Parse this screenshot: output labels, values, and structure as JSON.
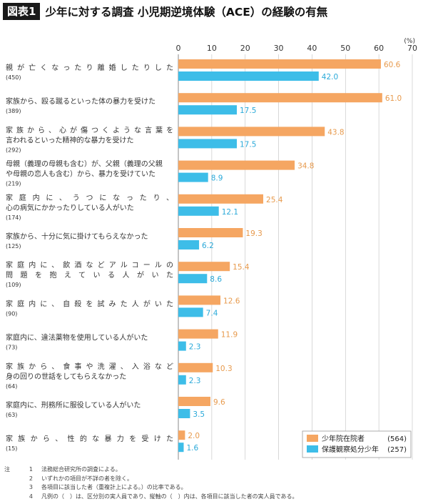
{
  "figure": {
    "badge": "図表1",
    "title": "少年に対する調査 小児期逆境体験（ACE）の経験の有無"
  },
  "notes": {
    "lead": "注",
    "items": [
      {
        "num": "1",
        "text": "法務総合研究所の調査による。"
      },
      {
        "num": "2",
        "text": "いずれかの項目が不詳の者を除く。"
      },
      {
        "num": "3",
        "text": "各項目に該当した者（重複計上による。）の比率である。"
      },
      {
        "num": "4",
        "text": "凡例の（　）は、区分別の実人員であり、縦軸の（　）内は、各項目に該当した者の実人員である。"
      }
    ]
  },
  "colors": {
    "orange": "#F5A662",
    "blue": "#3DBDE8",
    "orange_text": "#E79A4D",
    "blue_text": "#2AA9D9",
    "grid": "#c8c8c8"
  },
  "chart_data": {
    "type": "bar",
    "orientation": "horizontal",
    "unit": "(%)",
    "xlim": [
      0,
      70
    ],
    "ticks": [
      0,
      10,
      20,
      30,
      40,
      50,
      60,
      70
    ],
    "grid": true,
    "legend_position": "bottom-right",
    "series": [
      {
        "name": "少年院在院者",
        "count": "(564)",
        "values": [
          60.6,
          61.0,
          43.8,
          34.8,
          25.4,
          19.3,
          15.4,
          12.6,
          11.9,
          10.3,
          9.6,
          2.0
        ]
      },
      {
        "name": "保護観察処分少年",
        "count": "(257)",
        "values": [
          42.0,
          17.5,
          17.5,
          8.9,
          12.1,
          6.2,
          8.6,
          7.4,
          2.3,
          2.3,
          3.5,
          1.6
        ]
      }
    ],
    "categories": [
      {
        "lines": [
          "親が亡くなったり離婚したりした"
        ],
        "count": "(450)",
        "spread": [
          true
        ]
      },
      {
        "lines": [
          "家族から、殴る蹴るといった体の暴力を受けた"
        ],
        "count": "(389)",
        "spread": [
          false
        ]
      },
      {
        "lines": [
          "家族から、心が傷つくような言葉を",
          "言われるといった精神的な暴力を受けた"
        ],
        "count": "(292)",
        "spread": [
          true,
          false
        ]
      },
      {
        "lines": [
          "母親（義理の母親も含む）が、父親（義理の父親",
          "や母親の恋人も含む）から、暴力を受けていた"
        ],
        "count": "(219)",
        "spread": [
          false,
          false
        ]
      },
      {
        "lines": [
          "家庭内に、うつになったり、",
          "心の病気にかかったりしている人がいた"
        ],
        "count": "(174)",
        "spread": [
          true,
          false
        ]
      },
      {
        "lines": [
          "家族から、十分に気に掛けてもらえなかった"
        ],
        "count": "(125)",
        "spread": [
          false
        ]
      },
      {
        "lines": [
          "家庭内に、飲酒などアルコールの",
          "問題を抱えている人がいた"
        ],
        "count": "(109)",
        "spread": [
          true,
          true
        ]
      },
      {
        "lines": [
          "家庭内に、自殺を試みた人がいた"
        ],
        "count": "(90)",
        "spread": [
          true
        ]
      },
      {
        "lines": [
          "家庭内に、違法薬物を使用している人がいた"
        ],
        "count": "(73)",
        "spread": [
          false
        ]
      },
      {
        "lines": [
          "家族から、食事や洗濯、入浴など",
          "身の回りの世話をしてもらえなかった"
        ],
        "count": "(64)",
        "spread": [
          true,
          false
        ]
      },
      {
        "lines": [
          "家庭内に、刑務所に服役している人がいた"
        ],
        "count": "(63)",
        "spread": [
          false
        ]
      },
      {
        "lines": [
          "家族から、性的な暴力を受けた"
        ],
        "count": "(15)",
        "spread": [
          true
        ]
      }
    ]
  }
}
